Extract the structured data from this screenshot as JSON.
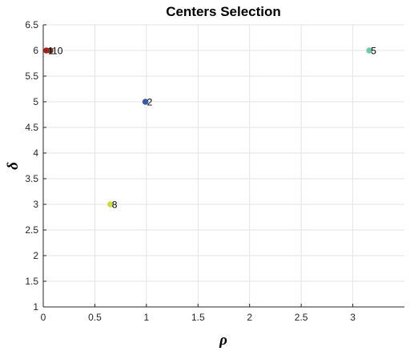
{
  "chart_data": {
    "type": "scatter",
    "title": "Centers Selection",
    "xlabel": "ρ",
    "ylabel": "δ",
    "xlim": [
      0,
      3.5
    ],
    "ylim": [
      1,
      6.5
    ],
    "xticks": [
      "0",
      "0.5",
      "1",
      "1.5",
      "2",
      "2.5",
      "3"
    ],
    "yticks": [
      "1",
      "1.5",
      "2",
      "2.5",
      "3",
      "3.5",
      "4",
      "4.5",
      "5",
      "5.5",
      "6",
      "6.5"
    ],
    "xtick_values": [
      0,
      0.5,
      1,
      1.5,
      2,
      2.5,
      3
    ],
    "ytick_values": [
      1,
      1.5,
      2,
      2.5,
      3,
      3.5,
      4,
      4.5,
      5,
      5.5,
      6,
      6.5
    ],
    "grid": true,
    "points": [
      {
        "x": 0.03,
        "y": 6.0,
        "label": "1",
        "color": "#a31f1f"
      },
      {
        "x": 0.07,
        "y": 6.0,
        "label": "10",
        "color": "#7a3b2a"
      },
      {
        "x": 0.99,
        "y": 5.0,
        "label": "2",
        "color": "#3b5aa0"
      },
      {
        "x": 3.16,
        "y": 6.0,
        "label": "5",
        "color": "#6fc7a7"
      },
      {
        "x": 0.65,
        "y": 3.0,
        "label": "8",
        "color": "#cfdc4a"
      }
    ]
  }
}
